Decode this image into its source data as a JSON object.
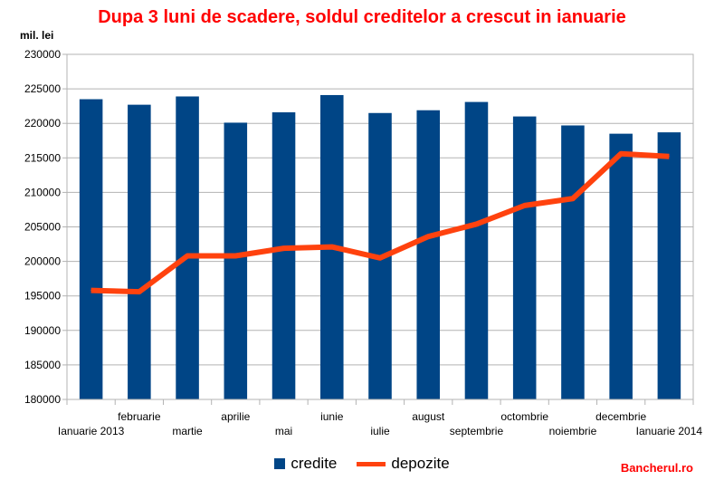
{
  "title": "Dupa 3 luni de scadere, soldul creditelor a crescut in ianuarie",
  "brand": "Bancherul.ro",
  "chart_data": {
    "type": "bar",
    "title": "Dupa 3 luni de scadere, soldul creditelor a crescut in ianuarie",
    "ylabel": "mil. lei",
    "xlabel": "",
    "ylim": [
      180000,
      230000
    ],
    "ystep": 5000,
    "grid": true,
    "legend_position": "bottom",
    "categories": [
      "Ianuarie 2013",
      "februarie",
      "martie",
      "aprilie",
      "mai",
      "iunie",
      "iulie",
      "august",
      "septembrie",
      "octombrie",
      "noiembrie",
      "decembrie",
      "Ianuarie 2014"
    ],
    "series": [
      {
        "name": "credite",
        "type": "bar",
        "color": "#004586",
        "values": [
          223500,
          222700,
          223900,
          220100,
          221600,
          224100,
          221500,
          221900,
          223100,
          221000,
          219700,
          218500,
          218700
        ]
      },
      {
        "name": "depozite",
        "type": "line",
        "color": "#ff420e",
        "values": [
          195800,
          195600,
          200800,
          200800,
          201900,
          202100,
          200500,
          203600,
          205400,
          208100,
          209100,
          215600,
          215200
        ]
      }
    ]
  }
}
